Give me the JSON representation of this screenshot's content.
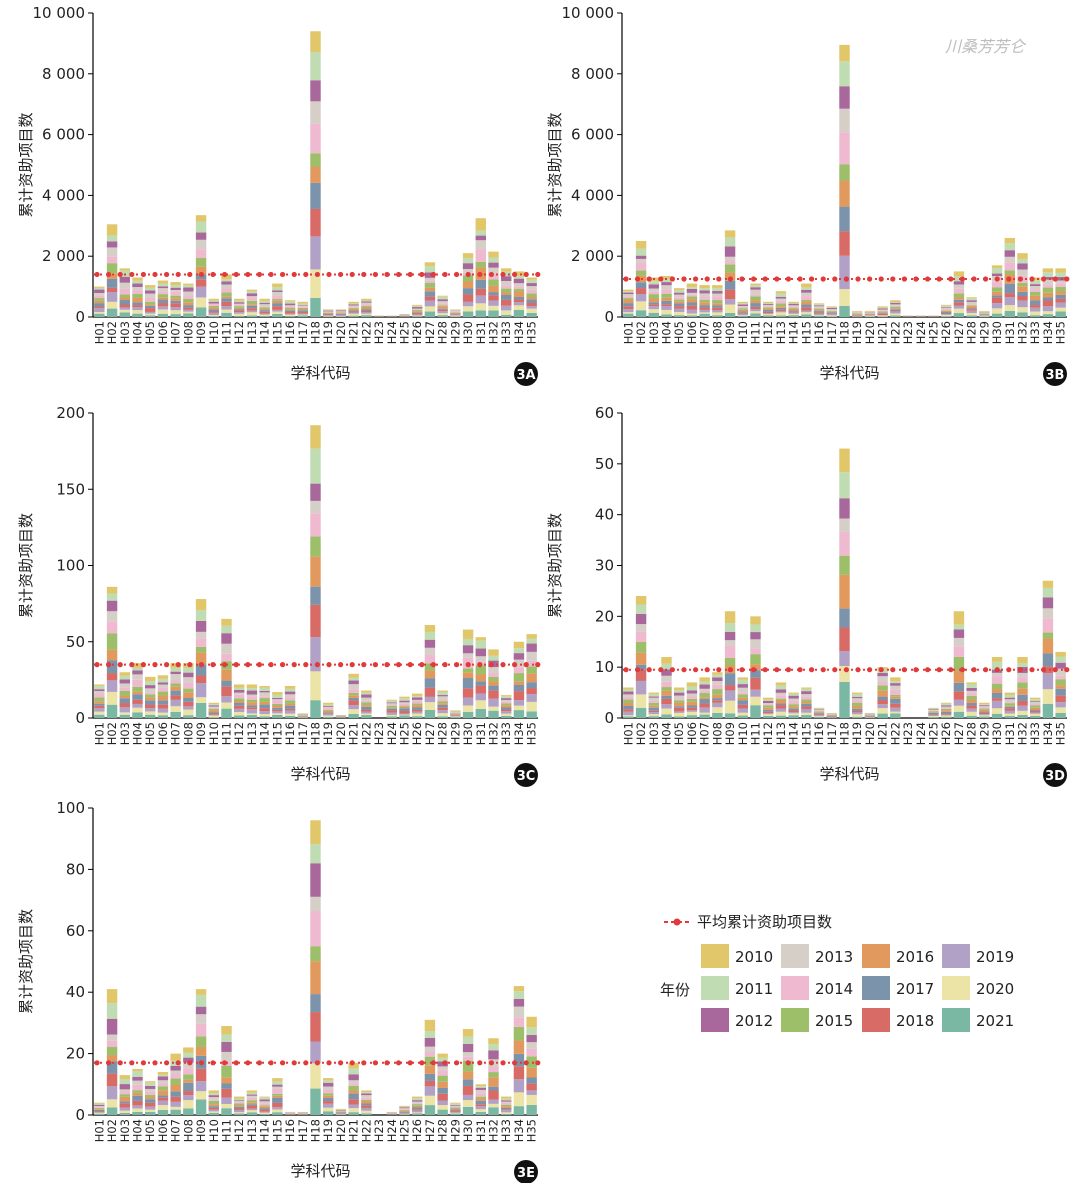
{
  "watermark": "川桑芳芳仑",
  "legend": {
    "mean_label": "平均累计资助项目数",
    "year_title": "年份",
    "years": [
      "2010",
      "2011",
      "2012",
      "2013",
      "2014",
      "2015",
      "2016",
      "2017",
      "2018",
      "2019",
      "2020",
      "2021"
    ],
    "colors": [
      "#e2c66a",
      "#bfdcb3",
      "#a9689c",
      "#d6cfc8",
      "#efb9cf",
      "#9dbf6a",
      "#e2995e",
      "#7b93ab",
      "#d96b67",
      "#b1a1c6",
      "#ece3a6",
      "#7bb8a3"
    ],
    "mean_color": "#e03a3a"
  },
  "chart_data": [
    {
      "id": "3A",
      "type": "bar",
      "stacked": true,
      "xlabel": "学科代码",
      "ylabel": "累计资助项目数",
      "ylim": [
        0,
        10000
      ],
      "yticks": [
        0,
        2000,
        4000,
        6000,
        8000,
        10000
      ],
      "ytick_labels": [
        "0",
        "2 000",
        "4 000",
        "6 000",
        "8 000",
        "10 000"
      ],
      "categories": [
        "H01",
        "H02",
        "H03",
        "H04",
        "H05",
        "H06",
        "H07",
        "H08",
        "H09",
        "H10",
        "H11",
        "H12",
        "H13",
        "H14",
        "H15",
        "H16",
        "H17",
        "H18",
        "H19",
        "H20",
        "H21",
        "H22",
        "H23",
        "H24",
        "H25",
        "H26",
        "H27",
        "H28",
        "H29",
        "H30",
        "H31",
        "H32",
        "H33",
        "H34",
        "H35"
      ],
      "totals": [
        1000,
        3050,
        1600,
        1300,
        1050,
        1200,
        1150,
        1100,
        3350,
        600,
        1400,
        600,
        900,
        600,
        1100,
        550,
        500,
        9400,
        250,
        250,
        500,
        600,
        50,
        50,
        100,
        400,
        1800,
        700,
        250,
        2100,
        3250,
        2150,
        1600,
        1500,
        1300
      ],
      "mean": 1400
    },
    {
      "id": "3B",
      "type": "bar",
      "stacked": true,
      "xlabel": "学科代码",
      "ylabel": "累计资助项目数",
      "ylim": [
        0,
        10000
      ],
      "yticks": [
        0,
        2000,
        4000,
        6000,
        8000,
        10000
      ],
      "ytick_labels": [
        "0",
        "2 000",
        "4 000",
        "6 000",
        "8 000",
        "10 000"
      ],
      "categories": [
        "H01",
        "H02",
        "H03",
        "H04",
        "H05",
        "H06",
        "H07",
        "H08",
        "H09",
        "H10",
        "H11",
        "H12",
        "H13",
        "H14",
        "H15",
        "H16",
        "H17",
        "H18",
        "H19",
        "H20",
        "H21",
        "H22",
        "H23",
        "H24",
        "H25",
        "H26",
        "H27",
        "H28",
        "H29",
        "H30",
        "H31",
        "H32",
        "H33",
        "H34",
        "H35"
      ],
      "totals": [
        900,
        2500,
        1300,
        1350,
        950,
        1100,
        1050,
        1050,
        2850,
        500,
        1100,
        500,
        850,
        500,
        1100,
        450,
        350,
        8950,
        200,
        200,
        350,
        550,
        50,
        50,
        50,
        400,
        1500,
        650,
        200,
        1700,
        2600,
        2100,
        1300,
        1600,
        1600
      ],
      "mean": 1250
    },
    {
      "id": "3C",
      "type": "bar",
      "stacked": true,
      "xlabel": "学科代码",
      "ylabel": "累计资助项目数",
      "ylim": [
        0,
        200
      ],
      "yticks": [
        0,
        50,
        100,
        150,
        200
      ],
      "ytick_labels": [
        "0",
        "50",
        "100",
        "150",
        "200"
      ],
      "categories": [
        "H01",
        "H02",
        "H03",
        "H04",
        "H05",
        "H06",
        "H07",
        "H08",
        "H09",
        "H10",
        "H11",
        "H12",
        "H13",
        "H14",
        "H15",
        "H16",
        "H17",
        "H18",
        "H19",
        "H20",
        "H21",
        "H22",
        "H23",
        "H24",
        "H25",
        "H26",
        "H27",
        "H28",
        "H29",
        "H30",
        "H31",
        "H32",
        "H33",
        "H34",
        "H35"
      ],
      "totals": [
        22,
        86,
        30,
        36,
        27,
        28,
        36,
        36,
        78,
        10,
        65,
        22,
        22,
        21,
        17,
        21,
        3,
        192,
        10,
        2,
        29,
        18,
        0,
        12,
        14,
        16,
        61,
        18,
        5,
        58,
        53,
        45,
        15,
        50,
        55
      ],
      "mean": 35
    },
    {
      "id": "3D",
      "type": "bar",
      "stacked": true,
      "xlabel": "学科代码",
      "ylabel": "累计资助项目数",
      "ylim": [
        0,
        60
      ],
      "yticks": [
        0,
        10,
        20,
        30,
        40,
        50,
        60
      ],
      "ytick_labels": [
        "0",
        "10",
        "20",
        "30",
        "40",
        "50",
        "60"
      ],
      "categories": [
        "H01",
        "H02",
        "H03",
        "H04",
        "H05",
        "H06",
        "H07",
        "H08",
        "H09",
        "H10",
        "H11",
        "H12",
        "H13",
        "H14",
        "H15",
        "H16",
        "H17",
        "H18",
        "H19",
        "H20",
        "H21",
        "H22",
        "H23",
        "H24",
        "H25",
        "H26",
        "H27",
        "H28",
        "H29",
        "H30",
        "H31",
        "H32",
        "H33",
        "H34",
        "H35"
      ],
      "totals": [
        6,
        24,
        5,
        12,
        6,
        7,
        8,
        9,
        21,
        8,
        20,
        4,
        7,
        5,
        6,
        2,
        1,
        53,
        5,
        1,
        10,
        8,
        0,
        0,
        2,
        3,
        21,
        7,
        3,
        12,
        5,
        12,
        4,
        27,
        13
      ],
      "mean": 9.5
    },
    {
      "id": "3E",
      "type": "bar",
      "stacked": true,
      "xlabel": "学科代码",
      "ylabel": "累计资助项目数",
      "ylim": [
        0,
        100
      ],
      "yticks": [
        0,
        20,
        40,
        60,
        80,
        100
      ],
      "ytick_labels": [
        "0",
        "20",
        "40",
        "60",
        "80",
        "100"
      ],
      "categories": [
        "H01",
        "H02",
        "H03",
        "H04",
        "H05",
        "H06",
        "H07",
        "H08",
        "H09",
        "H10",
        "H11",
        "H12",
        "H13",
        "H14",
        "H15",
        "H16",
        "H17",
        "H18",
        "H19",
        "H20",
        "H21",
        "H22",
        "H23",
        "H24",
        "H25",
        "H26",
        "H27",
        "H28",
        "H29",
        "H30",
        "H31",
        "H32",
        "H33",
        "H34",
        "H35"
      ],
      "totals": [
        4,
        41,
        13,
        15,
        11,
        14,
        20,
        22,
        41,
        8,
        29,
        6,
        8,
        6,
        12,
        1,
        1,
        96,
        12,
        2,
        17,
        8,
        0,
        1,
        3,
        6,
        31,
        20,
        4,
        28,
        10,
        25,
        6,
        42,
        32
      ],
      "mean": 17
    }
  ]
}
